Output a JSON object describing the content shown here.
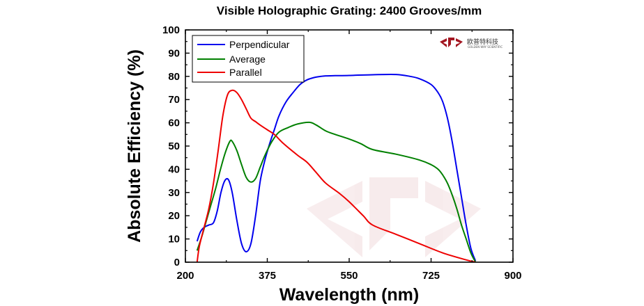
{
  "chart_data": {
    "type": "line",
    "title": "Visible Holographic Grating: 2400 Grooves/mm",
    "xlabel": "Wavelength (nm)",
    "ylabel": "Absolute Efficiency (%)",
    "xlim": [
      200,
      900
    ],
    "ylim": [
      0,
      100
    ],
    "xticks": [
      200,
      375,
      550,
      725,
      900
    ],
    "yticks": [
      0,
      10,
      20,
      30,
      40,
      50,
      60,
      70,
      80,
      90,
      100
    ],
    "grid": false,
    "legend_position": "top-left",
    "series": [
      {
        "name": "Perpendicular",
        "color": "#0000ee",
        "x": [
          225,
          232,
          240,
          250,
          260,
          268,
          276,
          284,
          292,
          300,
          310,
          320,
          330,
          340,
          350,
          360,
          370,
          380,
          390,
          400,
          415,
          430,
          445,
          460,
          475,
          490,
          500,
          520,
          550,
          600,
          650,
          680,
          700,
          725,
          740,
          750,
          760,
          770,
          780,
          790,
          800,
          810,
          820
        ],
        "y": [
          9,
          13,
          15,
          16,
          17,
          22,
          30,
          35,
          35.5,
          30,
          18,
          8,
          4.5,
          8,
          20,
          35,
          44,
          51,
          57,
          63,
          69,
          73,
          76.5,
          78.5,
          79.5,
          80,
          80.2,
          80.3,
          80.4,
          80.7,
          80.8,
          80,
          79,
          76.5,
          73,
          69,
          62,
          52,
          40,
          28,
          16,
          6,
          0.5
        ]
      },
      {
        "name": "Average",
        "color": "#008000",
        "x": [
          225,
          235,
          245,
          255,
          265,
          275,
          285,
          295,
          300,
          310,
          320,
          330,
          340,
          350,
          360,
          370,
          385,
          400,
          420,
          440,
          465,
          480,
          500,
          520,
          550,
          575,
          600,
          650,
          700,
          725,
          740,
          750,
          760,
          770,
          780,
          790,
          800,
          810,
          820
        ],
        "y": [
          5,
          11,
          18,
          25,
          32,
          40,
          47,
          52,
          52,
          48,
          42,
          36.5,
          34.5,
          36,
          41,
          46,
          52,
          56,
          58,
          59.5,
          60.2,
          59,
          56.5,
          55,
          53,
          51,
          48.5,
          46.5,
          44,
          42,
          40,
          37.5,
          34,
          29,
          23,
          16,
          10,
          4,
          0
        ]
      },
      {
        "name": "Parallel",
        "color": "#ee0000",
        "x": [
          225,
          230,
          240,
          250,
          260,
          270,
          280,
          290,
          300,
          310,
          320,
          330,
          340,
          350,
          360,
          375,
          390,
          410,
          440,
          460,
          480,
          500,
          530,
          550,
          580,
          600,
          650,
          700,
          750,
          800,
          820
        ],
        "y": [
          0,
          7,
          15,
          23,
          34,
          48,
          63,
          72,
          74,
          73,
          70,
          66,
          62,
          60.5,
          59,
          57,
          55,
          51,
          46,
          43,
          38.5,
          34,
          29.5,
          26,
          20,
          16,
          12,
          8,
          4,
          1,
          0
        ]
      }
    ]
  },
  "logo": {
    "mark": "GWS",
    "name": "欧普特科技",
    "sub": "GOLDEN WAY SCIENTIFIC"
  }
}
